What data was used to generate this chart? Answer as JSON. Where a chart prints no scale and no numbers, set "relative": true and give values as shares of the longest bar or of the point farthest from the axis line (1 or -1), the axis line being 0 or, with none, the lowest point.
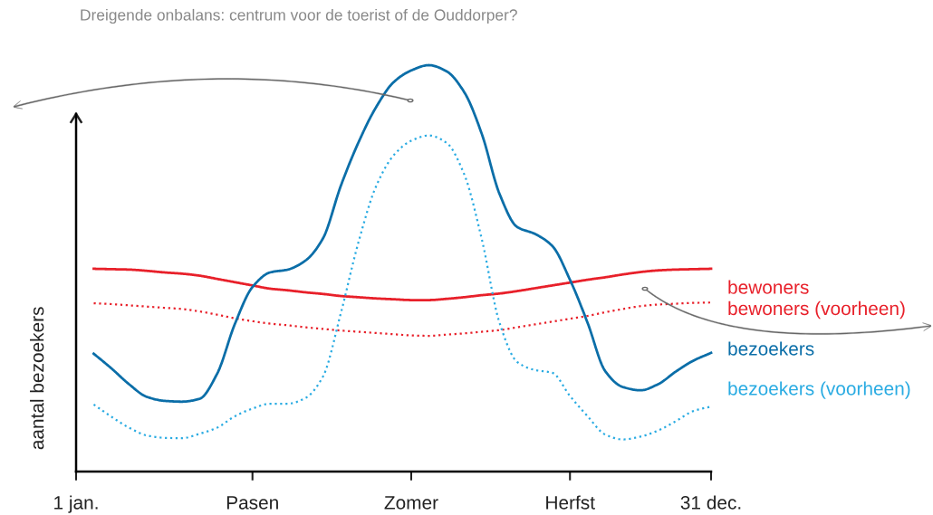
{
  "chart_data": {
    "type": "line",
    "title": "Dreigende onbalans: centrum voor de toerist of de Ouddorper?",
    "ylabel": "aantal bezoekers",
    "relative": true,
    "categories": [
      "1 jan.",
      null,
      null,
      null,
      null,
      null,
      null,
      null,
      null,
      null,
      "Pasen",
      null,
      null,
      null,
      null,
      null,
      null,
      null,
      null,
      "Zomer",
      null,
      null,
      null,
      null,
      null,
      null,
      null,
      null,
      "Herfst",
      null,
      null,
      null,
      null,
      null,
      null,
      null,
      "31 dec."
    ],
    "series": [
      {
        "name": "bewoners",
        "color": "#e8202a",
        "line_style": "solid",
        "values": [
          null,
          0.499,
          0.498,
          0.497,
          0.494,
          0.49,
          0.487,
          0.482,
          0.474,
          0.466,
          0.458,
          0.45,
          0.446,
          0.441,
          0.437,
          0.432,
          0.429,
          0.426,
          0.424,
          0.422,
          0.422,
          0.425,
          0.429,
          0.434,
          0.438,
          0.444,
          0.451,
          0.458,
          0.465,
          0.472,
          0.478,
          0.485,
          0.491,
          0.495,
          0.497,
          0.498,
          0.499
        ]
      },
      {
        "name": "bewoners (voorheen)",
        "color": "#e8202a",
        "line_style": "dotted",
        "values": [
          null,
          0.414,
          0.412,
          0.409,
          0.406,
          0.403,
          0.4,
          0.394,
          0.386,
          0.377,
          0.37,
          0.364,
          0.36,
          0.355,
          0.351,
          0.347,
          0.344,
          0.341,
          0.338,
          0.335,
          0.334,
          0.337,
          0.34,
          0.344,
          0.348,
          0.355,
          0.362,
          0.369,
          0.376,
          0.383,
          0.392,
          0.4,
          0.407,
          0.411,
          0.413,
          0.415,
          0.416
        ]
      },
      {
        "name": "bezoekers",
        "color": "#0b6ea8",
        "line_style": "solid",
        "values": [
          null,
          0.29,
          0.254,
          0.215,
          0.184,
          0.174,
          0.172,
          0.179,
          0.241,
          0.363,
          0.454,
          0.49,
          0.497,
          0.519,
          0.574,
          0.702,
          0.809,
          0.896,
          0.958,
          0.987,
          1.0,
          0.985,
          0.934,
          0.831,
          0.684,
          0.602,
          0.585,
          0.555,
          0.472,
          0.366,
          0.247,
          0.208,
          0.2,
          0.215,
          0.246,
          0.273,
          0.292
        ]
      },
      {
        "name": "bezoekers (voorheen)",
        "color": "#29abe2",
        "line_style": "dotted",
        "values": [
          null,
          0.165,
          0.135,
          0.108,
          0.089,
          0.083,
          0.082,
          0.093,
          0.108,
          0.136,
          0.155,
          0.167,
          0.167,
          0.181,
          0.234,
          0.388,
          0.563,
          0.701,
          0.778,
          0.814,
          0.827,
          0.809,
          0.732,
          0.572,
          0.367,
          0.27,
          0.25,
          0.243,
          0.186,
          0.136,
          0.091,
          0.079,
          0.086,
          0.101,
          0.124,
          0.149,
          0.16
        ]
      }
    ]
  }
}
